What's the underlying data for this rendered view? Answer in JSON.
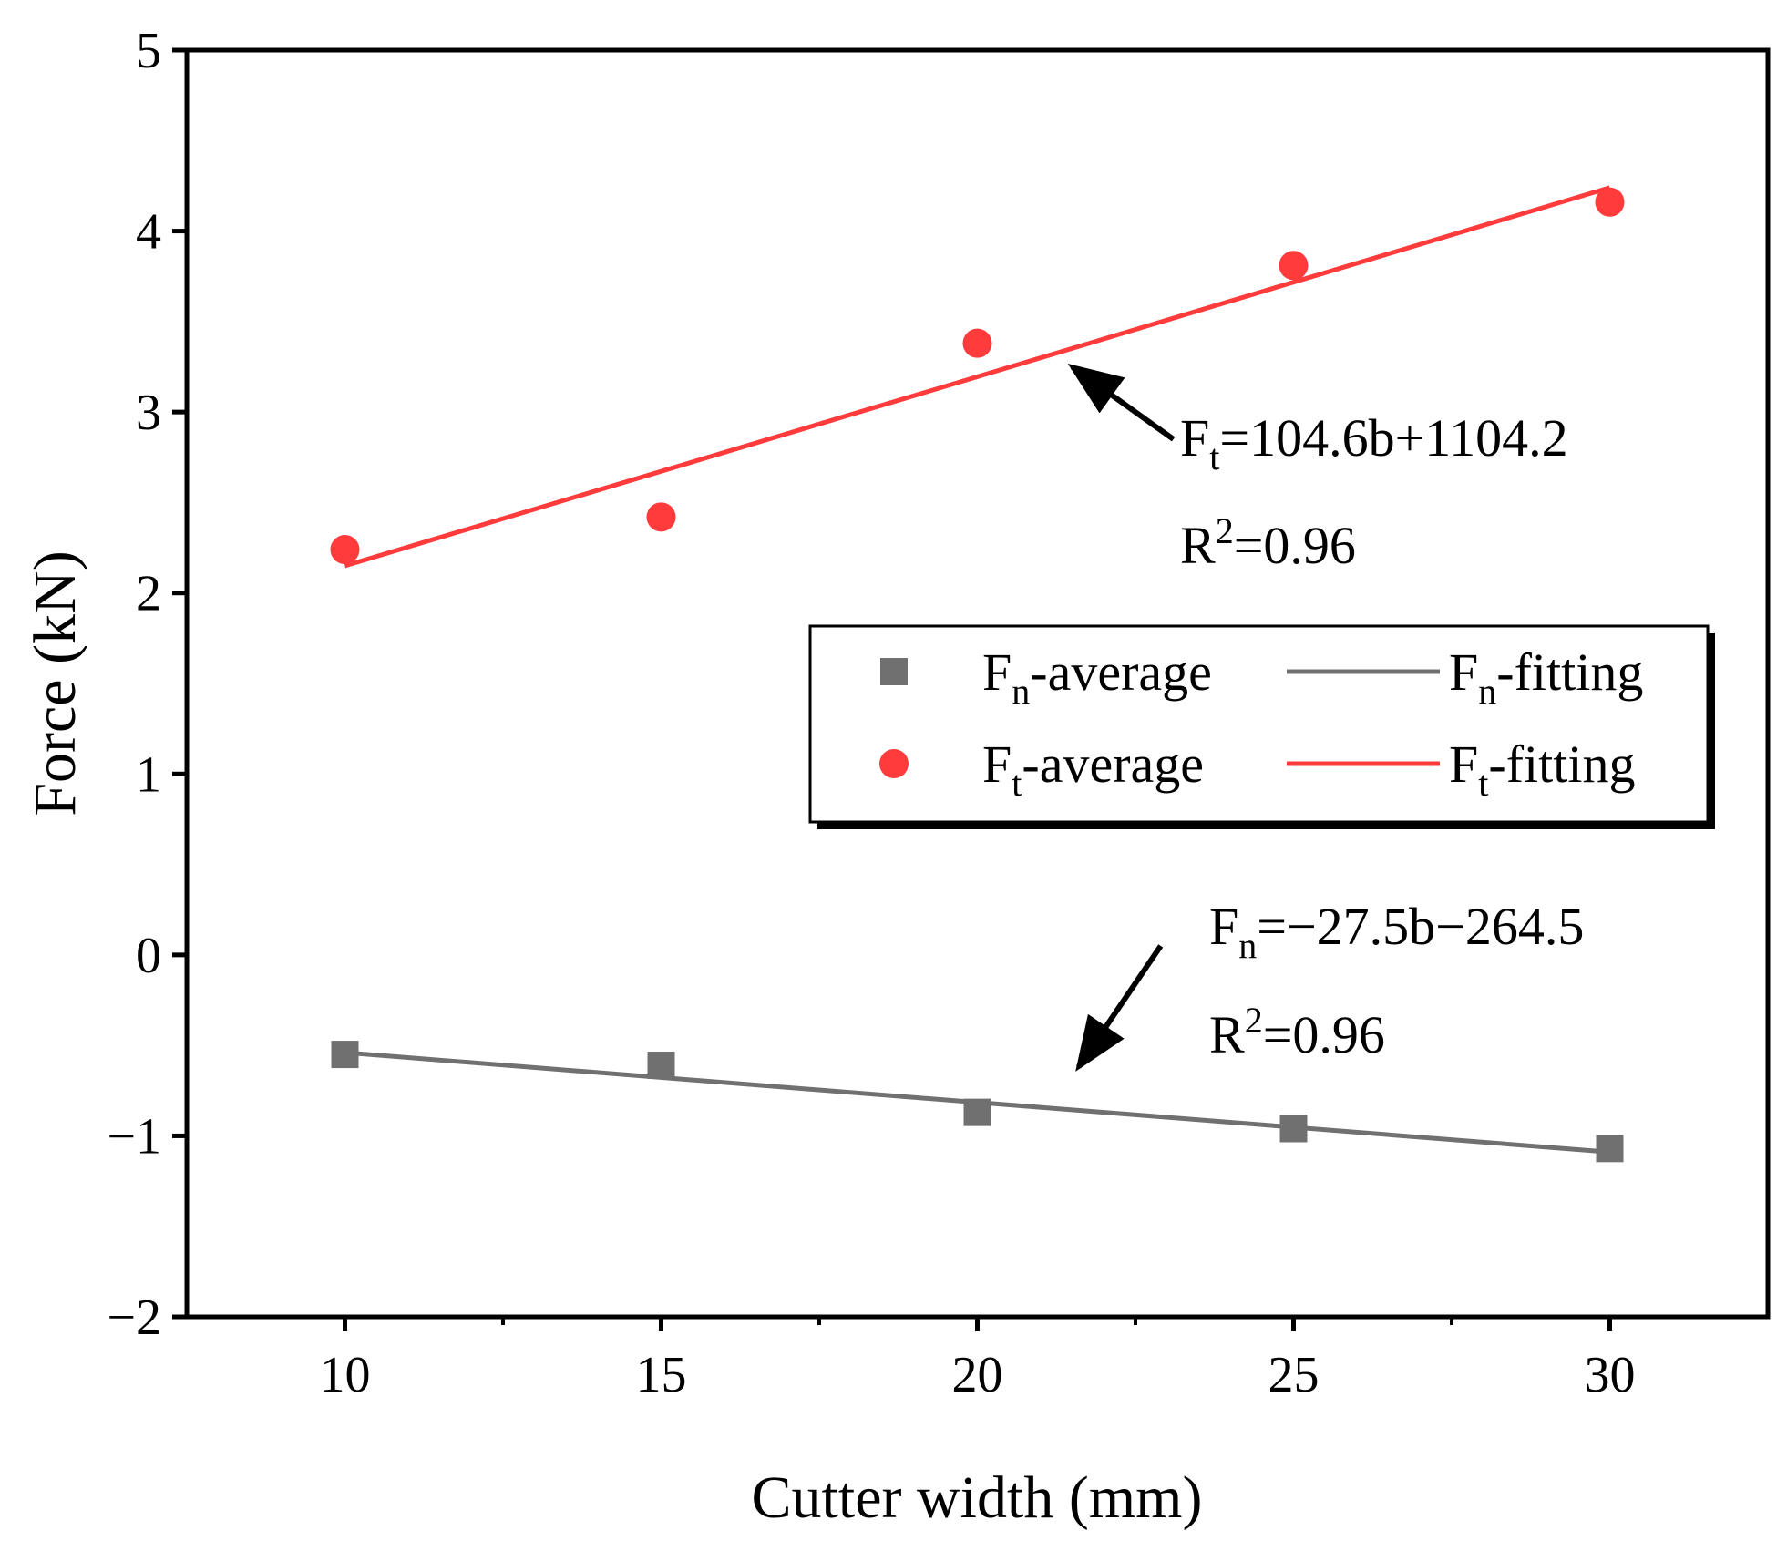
{
  "chart_data": {
    "type": "scatter",
    "xlabel": "Cutter width (mm)",
    "ylabel": "Force (kN)",
    "xlim": [
      7.5,
      32.5
    ],
    "ylim": [
      -2,
      5
    ],
    "x_ticks": [
      "10",
      "15",
      "20",
      "25",
      "30"
    ],
    "x_tick_values": [
      10,
      15,
      20,
      25,
      30
    ],
    "y_ticks": [
      "5",
      "4",
      "3",
      "2",
      "1",
      "0",
      "−1",
      "−2"
    ],
    "y_tick_values": [
      5,
      4,
      3,
      2,
      1,
      0,
      -1,
      -2
    ],
    "series": [
      {
        "name": "Fn-average",
        "legend_main": "F",
        "legend_sub": "n",
        "legend_rest": "-average",
        "marker": "square",
        "color": "#707070",
        "x": [
          10,
          15,
          20,
          25,
          30
        ],
        "y": [
          -0.55,
          -0.61,
          -0.87,
          -0.96,
          -1.07
        ]
      },
      {
        "name": "Ft-average",
        "legend_main": "F",
        "legend_sub": "t",
        "legend_rest": "-average",
        "marker": "circle",
        "color": "#ff3b3b",
        "x": [
          10,
          15,
          20,
          25,
          30
        ],
        "y": [
          2.24,
          2.42,
          3.38,
          3.81,
          4.16
        ]
      }
    ],
    "fits": [
      {
        "name": "Fn-fitting",
        "legend_main": "F",
        "legend_sub": "n",
        "legend_rest": "-fitting",
        "color": "#707070",
        "x": [
          10,
          30
        ],
        "y": [
          -0.54,
          -1.09
        ]
      },
      {
        "name": "Ft-fitting",
        "legend_main": "F",
        "legend_sub": "t",
        "legend_rest": "-fitting",
        "color": "#ff3b3b",
        "x": [
          10,
          30
        ],
        "y": [
          2.15,
          4.24
        ]
      }
    ],
    "annotations": [
      {
        "eq_main": "F",
        "eq_sub": "t",
        "eq_rest": "=104.6b+1104.2",
        "r2_main": "R",
        "r2_sup": "2",
        "r2_rest": "=0.96",
        "arrow_tip": {
          "x": 21.5,
          "y": 3.25
        },
        "arrow_tail": {
          "x": 23.1,
          "y": 2.85
        }
      },
      {
        "eq_main": "F",
        "eq_sub": "n",
        "eq_rest": "=−27.5b−264.5",
        "r2_main": "R",
        "r2_sup": "2",
        "r2_rest": "=0.96",
        "arrow_tip": {
          "x": 21.6,
          "y": -0.62
        },
        "arrow_tail": {
          "x": 22.9,
          "y": 0.05
        }
      }
    ],
    "legend_position": "center-right"
  }
}
